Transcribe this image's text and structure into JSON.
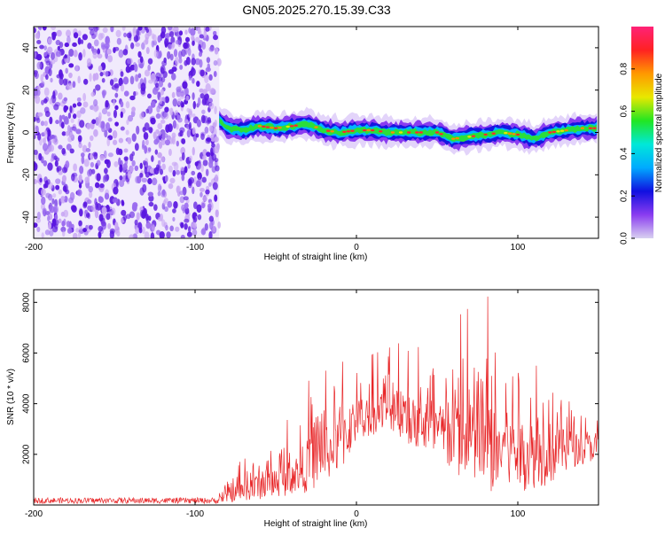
{
  "title": "GN05.2025.270.15.39.C33",
  "colors": {
    "snr_line": "#e8282a",
    "noise_dark": "#5a16e0",
    "noise_light": "#c8a6f4",
    "colorbar": [
      "#d8d0f0",
      "#8a3cf0",
      "#1010e0",
      "#00aaff",
      "#00e8d8",
      "#22e622",
      "#e8e800",
      "#ff9900",
      "#ff2222",
      "#ff2277"
    ]
  },
  "chart_data": [
    {
      "type": "heatmap",
      "name": "spectrogram",
      "xlabel": "Height of straight line (km)",
      "ylabel": "Frequency (Hz)",
      "xlim": [
        -200,
        150
      ],
      "ylim": [
        -50,
        50
      ],
      "x_ticks": [
        -200,
        -100,
        0,
        100
      ],
      "y_ticks": [
        -40,
        -20,
        0,
        20,
        40
      ],
      "noise_region_x": [
        -200,
        -85
      ],
      "signal_region_x": [
        -85,
        150
      ],
      "signal_track": [
        {
          "x": -85,
          "y": 6
        },
        {
          "x": -80,
          "y": 2
        },
        {
          "x": -70,
          "y": 1
        },
        {
          "x": -60,
          "y": 3
        },
        {
          "x": -50,
          "y": 2
        },
        {
          "x": -40,
          "y": 3
        },
        {
          "x": -30,
          "y": 4
        },
        {
          "x": -20,
          "y": 1
        },
        {
          "x": -10,
          "y": 0
        },
        {
          "x": 0,
          "y": 1
        },
        {
          "x": 10,
          "y": 1
        },
        {
          "x": 20,
          "y": 0
        },
        {
          "x": 30,
          "y": 0
        },
        {
          "x": 40,
          "y": 0
        },
        {
          "x": 50,
          "y": 0
        },
        {
          "x": 60,
          "y": -3
        },
        {
          "x": 70,
          "y": -2
        },
        {
          "x": 80,
          "y": -1
        },
        {
          "x": 90,
          "y": 0
        },
        {
          "x": 100,
          "y": -1
        },
        {
          "x": 110,
          "y": -3
        },
        {
          "x": 120,
          "y": 0
        },
        {
          "x": 130,
          "y": 1
        },
        {
          "x": 140,
          "y": 2
        },
        {
          "x": 150,
          "y": 2
        }
      ],
      "colorbar": {
        "label": "Normalized spectral amplitude",
        "range": [
          0,
          1
        ],
        "ticks": [
          0.0,
          0.2,
          0.4,
          0.6,
          0.8
        ]
      }
    },
    {
      "type": "line",
      "name": "snr",
      "xlabel": "Height of straight line (km)",
      "ylabel": "SNR (10 * v/v)",
      "xlim": [
        -200,
        150
      ],
      "ylim": [
        0,
        8500
      ],
      "x_ticks": [
        -200,
        -100,
        0,
        100
      ],
      "y_ticks": [
        2000,
        4000,
        6000,
        8000
      ],
      "envelope": [
        {
          "x": -200,
          "min": 0,
          "max": 250
        },
        {
          "x": -90,
          "min": 0,
          "max": 250
        },
        {
          "x": -80,
          "min": 100,
          "max": 1200
        },
        {
          "x": -60,
          "min": 200,
          "max": 2500
        },
        {
          "x": -40,
          "min": 400,
          "max": 3500
        },
        {
          "x": -30,
          "min": 500,
          "max": 5200
        },
        {
          "x": -10,
          "min": 1200,
          "max": 6200
        },
        {
          "x": 0,
          "min": 2500,
          "max": 5700
        },
        {
          "x": 20,
          "min": 3000,
          "max": 6200
        },
        {
          "x": 40,
          "min": 2000,
          "max": 6800
        },
        {
          "x": 60,
          "min": 1200,
          "max": 7300
        },
        {
          "x": 80,
          "min": 400,
          "max": 8300
        },
        {
          "x": 100,
          "min": 500,
          "max": 7300
        },
        {
          "x": 120,
          "min": 800,
          "max": 6000
        },
        {
          "x": 135,
          "min": 1500,
          "max": 4500
        },
        {
          "x": 150,
          "min": 1800,
          "max": 4000
        }
      ]
    }
  ]
}
